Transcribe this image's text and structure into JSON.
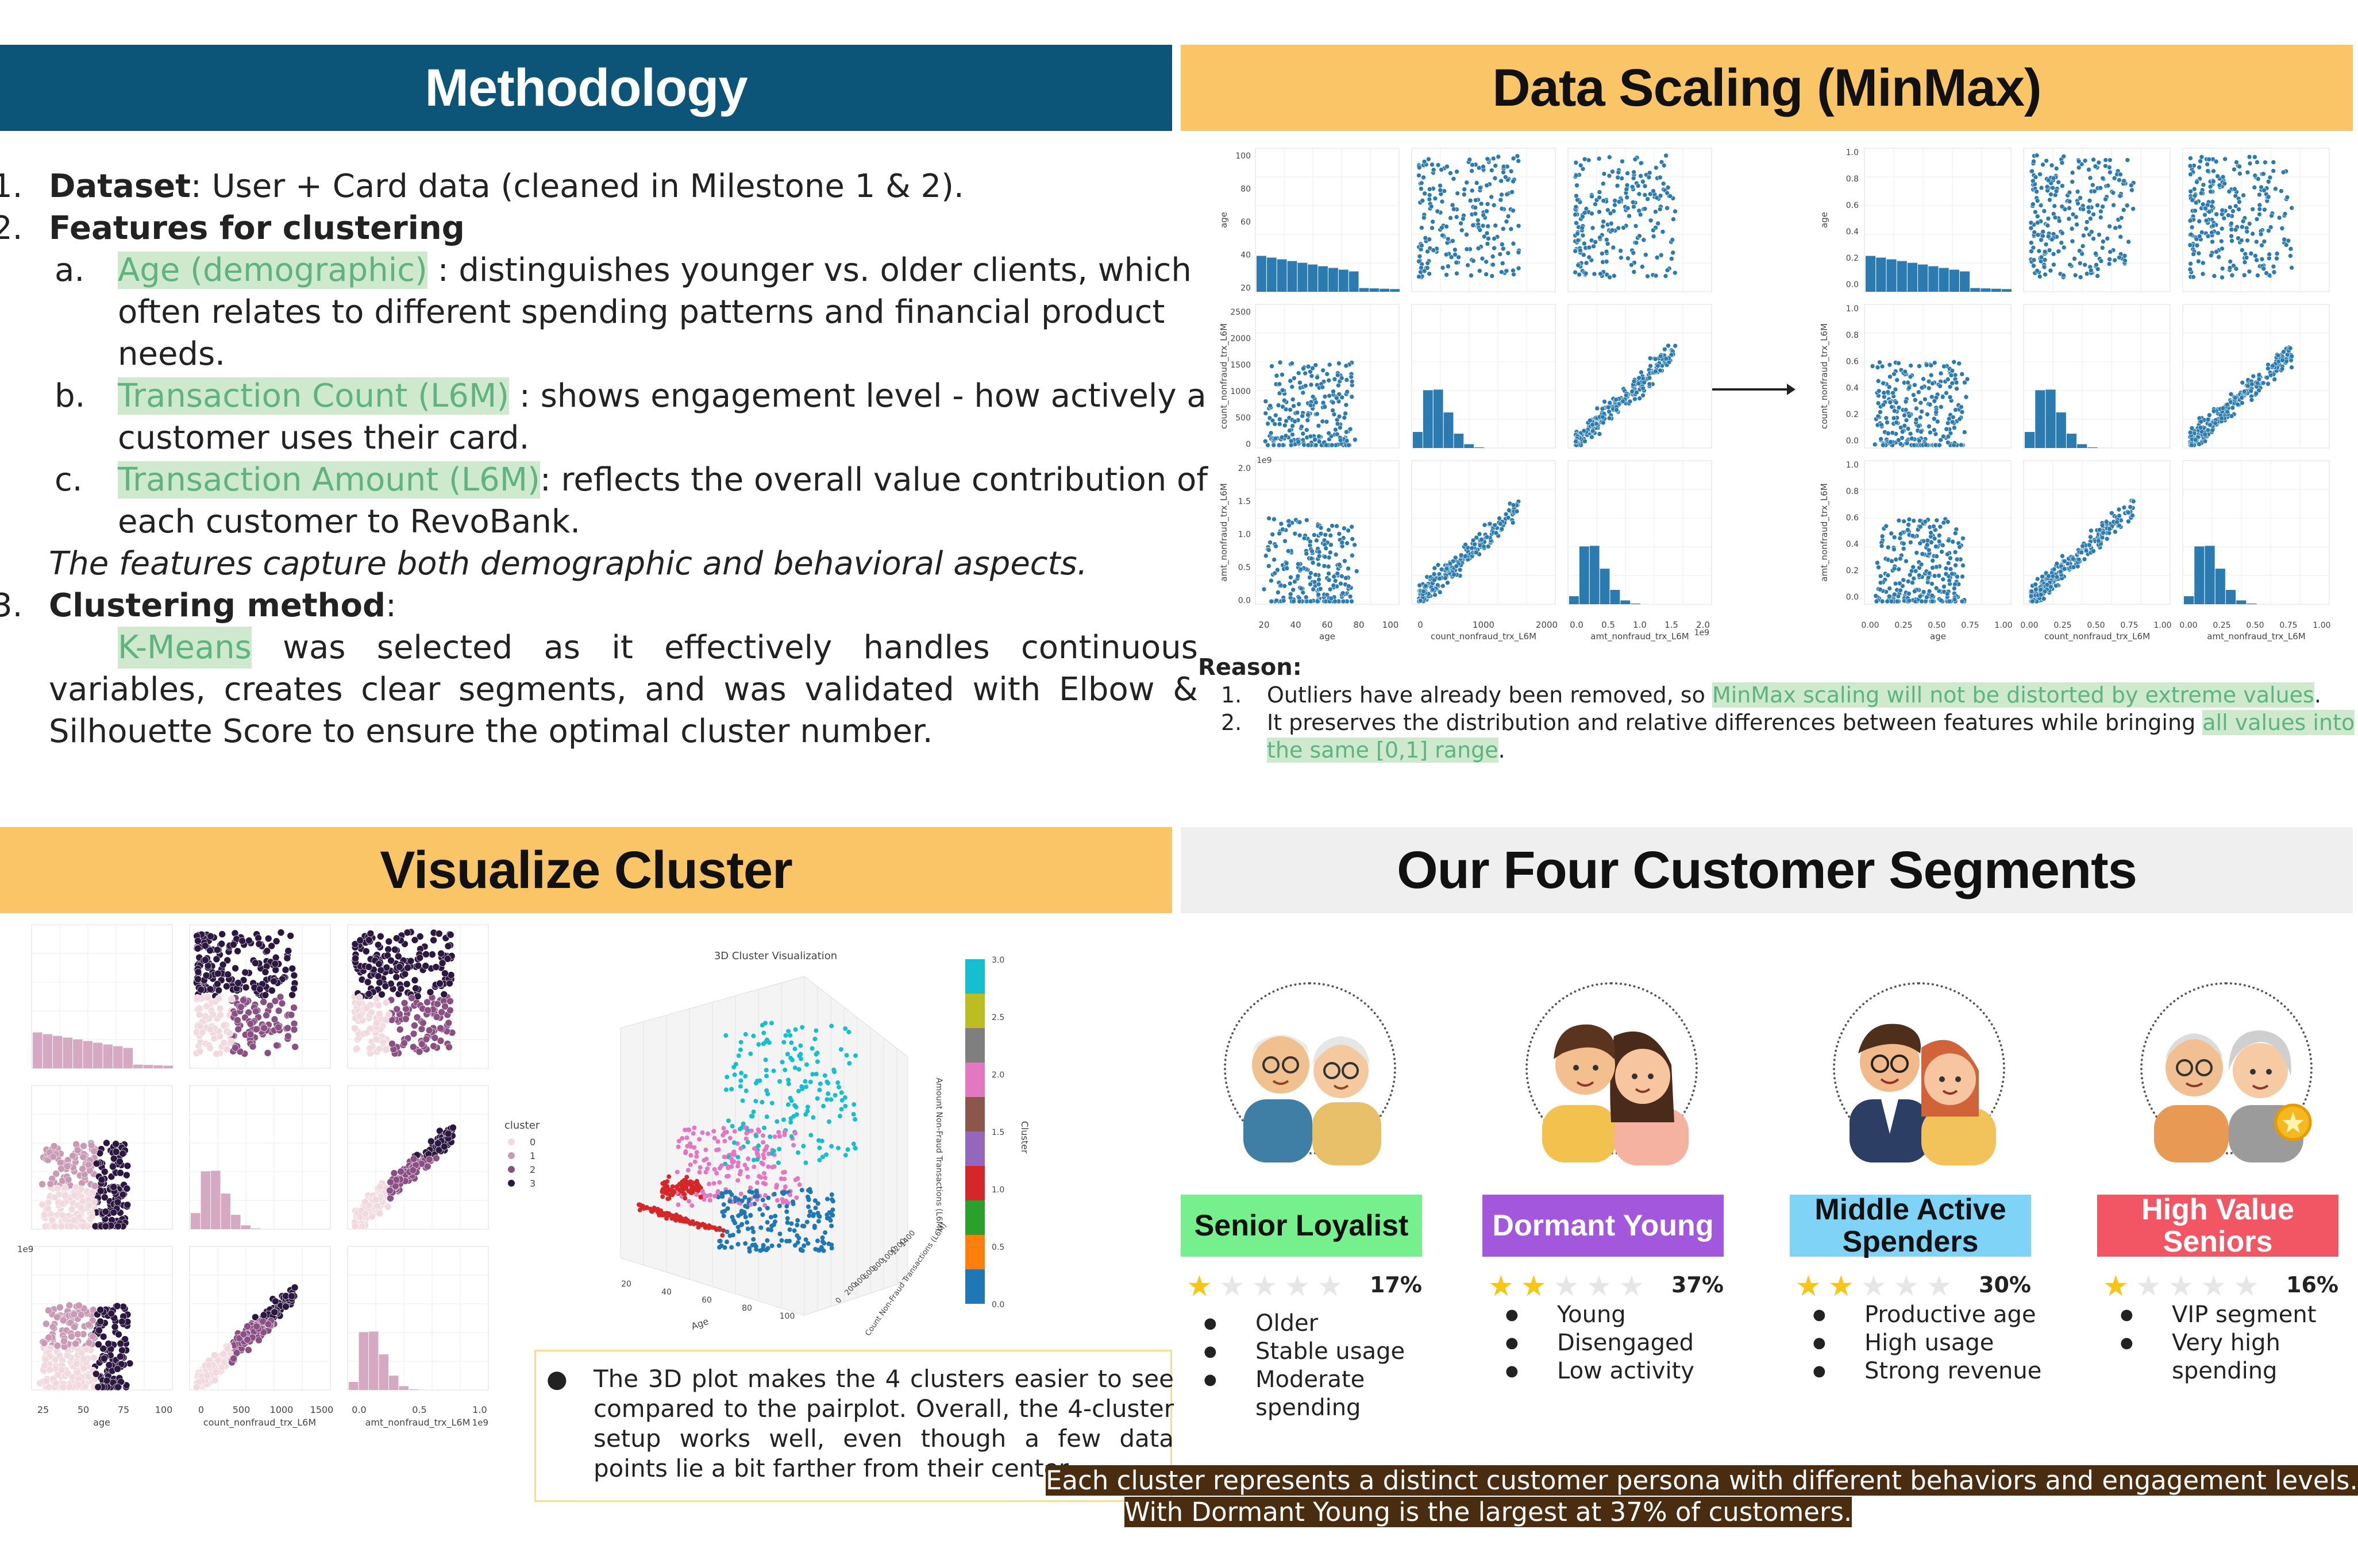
{
  "methodology": {
    "title": "Methodology",
    "n1": "1.",
    "dataset_label": "Dataset",
    "dataset_text": ": User + Card data (cleaned in Milestone 1 & 2).",
    "n2": "2.",
    "features_label": "Features for clustering",
    "a_letter": "a.",
    "a_hl": "Age (demographic)",
    "a_text": " : distinguishes younger vs. older clients, which",
    "a_line2": "often relates to different spending patterns and financial product",
    "a_line3": "needs.",
    "b_letter": "b.",
    "b_hl": "Transaction Count (L6M)",
    "b_text": " : shows engagement level - how actively a",
    "b_line2": "customer uses their card.",
    "c_letter": "c.",
    "c_hl": "Transaction Amount (L6M)",
    "c_text": ": reflects the overall value contribution of",
    "c_line2": "each customer to RevoBank.",
    "italic": "The features capture both demographic and behavioral aspects.",
    "n3": "3.",
    "method_label": "Clustering method",
    "method_colon": ":",
    "km_hl": "K-Means",
    "km_words": [
      "was",
      "selected",
      "as",
      "it",
      "effectively",
      "handles",
      "continuous"
    ],
    "km_line2_words": [
      "variables,",
      "creates",
      "clear",
      "segments,",
      "and",
      "was",
      "validated",
      "with",
      "Elbow",
      "&"
    ],
    "km_line3": "Silhouette Score to ensure the optimal cluster number."
  },
  "scaling": {
    "title": "Data Scaling (MinMax)",
    "reason_label": "Reason:",
    "r1_num": "1.",
    "r1_text": "Outliers have already been removed, so ",
    "r1_hl": "MinMax scaling will not be distorted by extreme values",
    "r1_end": ".",
    "r2_num": "2.",
    "r2_text": "It preserves the distribution and relative differences between features while bringing ",
    "r2_hl": "all values into",
    "r2_hl2": "the same [0,1] range",
    "r2_end": ".",
    "left_pairplot": {
      "row_labels": [
        "age",
        "count_nonfraud_trx_L6M",
        "amt_nonfraud_trx_L6M"
      ],
      "col_labels": [
        "age",
        "count_nonfraud_trx_L6M",
        "amt_nonfraud_trx_L6M"
      ],
      "age_ticks": [
        "20",
        "40",
        "60",
        "80",
        "100"
      ],
      "age_y_ticks": [
        "100",
        "80",
        "60",
        "40",
        "20"
      ],
      "count_ticks": [
        "0",
        "1000",
        "2000"
      ],
      "count_y_ticks": [
        "2500",
        "2000",
        "1500",
        "1000",
        "500",
        "0"
      ],
      "amt_ticks": [
        "0.0",
        "0.5",
        "1.0",
        "1.5",
        "2.0"
      ],
      "amt_y_ticks": [
        "2.0",
        "1.5",
        "1.0",
        "0.5",
        "0.0"
      ],
      "exp_label": "1e9"
    },
    "right_pairplot": {
      "ticks": [
        "0.00",
        "0.25",
        "0.50",
        "0.75",
        "1.00"
      ],
      "y_ticks": [
        "1.0",
        "0.8",
        "0.6",
        "0.4",
        "0.2",
        "0.0"
      ]
    }
  },
  "visualize": {
    "title": "Visualize Cluster",
    "legend_title": "cluster",
    "legend_items": [
      "0",
      "1",
      "2",
      "3"
    ],
    "x_labels": [
      "age",
      "count_nonfraud_trx_L6M",
      "amt_nonfraud_trx_L6M"
    ],
    "age_ticks": [
      "25",
      "50",
      "75",
      "100"
    ],
    "count_ticks": [
      "0",
      "500",
      "1000",
      "1500"
    ],
    "amt_ticks": [
      "0.0",
      "0.5",
      "1.0"
    ],
    "exp_label": "1e9",
    "plot3d_title": "3D Cluster Visualization",
    "plot3d_xlabel": "Age",
    "plot3d_ylabel": "Count Non-Fraud Transactions (L6M)",
    "plot3d_zlabel": "Amount Non-Fraud Transactions (L6M)",
    "x3d_ticks": [
      "20",
      "40",
      "60",
      "80",
      "100"
    ],
    "y3d_ticks": [
      "0",
      "200",
      "400",
      "600",
      "800",
      "1000",
      "1200",
      "1400"
    ],
    "colorbar_label": "Cluster",
    "colorbar_ticks": [
      "3.0",
      "2.5",
      "2.0",
      "1.5",
      "1.0",
      "0.5",
      "0.0"
    ],
    "note_bullet": "●",
    "note_text": "The 3D plot makes the 4 clusters easier to see compared to the pairplot. Overall, the 4-cluster setup works well, even though a few data points lie a bit farther from their center."
  },
  "segments": {
    "title": "Our Four Customer Segments",
    "items": [
      {
        "name": "Senior Loyalist",
        "pct": "17%",
        "stars": 1,
        "badge_color": "#76ef8d",
        "text_color": "#111111",
        "bullets": [
          "Older",
          "Stable usage",
          "Moderate",
          "spending"
        ]
      },
      {
        "name": "Dormant Young",
        "pct": "37%",
        "stars": 2,
        "badge_color": "#a357dc",
        "text_color": "#ffffff",
        "bullets": [
          "Young",
          "Disengaged",
          "Low activity"
        ]
      },
      {
        "name": "Middle Active Spenders",
        "pct": "30%",
        "stars": 2,
        "badge_color": "#7fd3f6",
        "text_color": "#111111",
        "bullets": [
          "Productive age",
          "High usage",
          "Strong revenue"
        ]
      },
      {
        "name": "High Value Seniors",
        "pct": "16%",
        "stars": 1,
        "badge_color": "#f25563",
        "text_color": "#ffffff",
        "bullets": [
          "VIP segment",
          "Very high",
          "spending"
        ]
      }
    ],
    "banner_line1": "Each cluster represents a distinct customer persona with different behaviors and engagement levels.",
    "banner_line2": "With Dormant Young is the largest at 37% of customers."
  }
}
